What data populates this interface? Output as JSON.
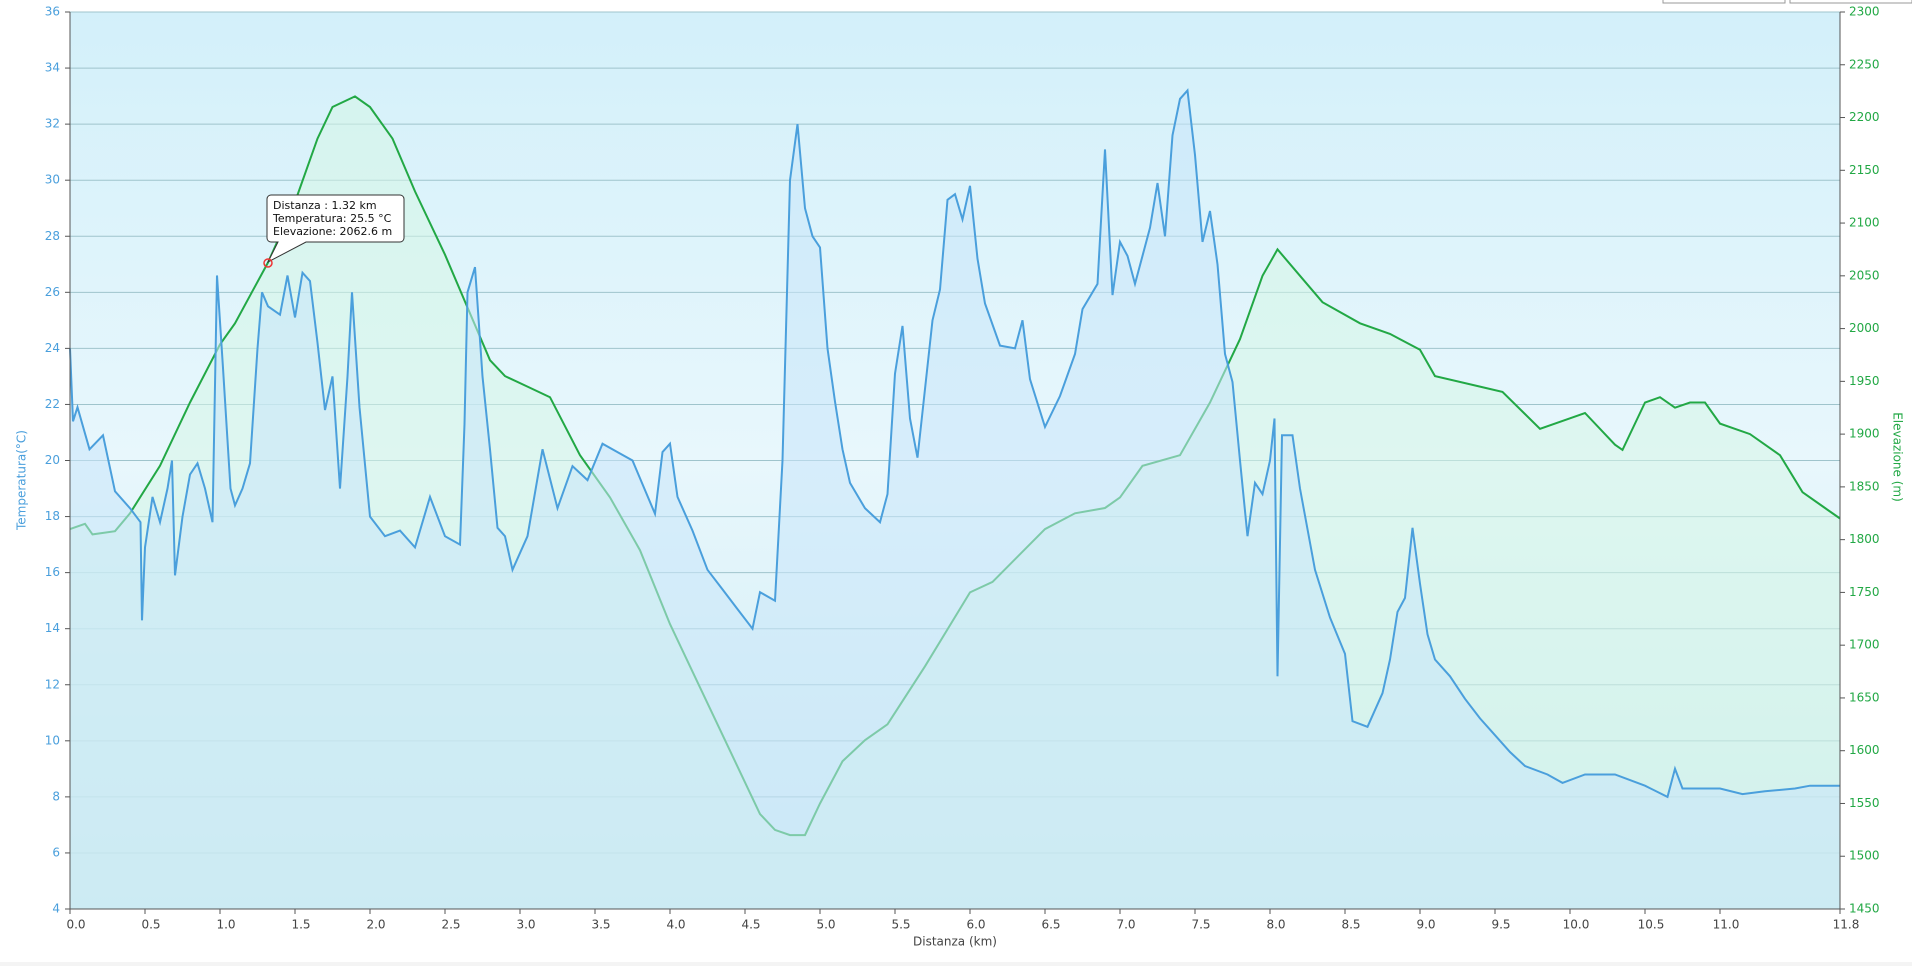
{
  "chart_data": {
    "type": "line",
    "xlabel": "Distanza  (km)",
    "ylabel": "Temperatura(°C)",
    "y2label": "Elevazione (m)",
    "xlim": [
      0,
      11.8
    ],
    "xticks": [
      {
        "value": 0,
        "label": "0.0"
      },
      0.5,
      {
        "value": 1,
        "label": "1.0"
      },
      1.5,
      {
        "value": 2,
        "label": "2.0"
      },
      2.5,
      {
        "value": 3,
        "label": "3.0"
      },
      3.5,
      {
        "value": 4,
        "label": "4.0"
      },
      4.5,
      {
        "value": 5,
        "label": "5.0"
      },
      5.5,
      {
        "value": 6,
        "label": "6.0"
      },
      6.5,
      {
        "value": 7,
        "label": "7.0"
      },
      7.5,
      {
        "value": 8,
        "label": "8.0"
      },
      8.5,
      {
        "value": 9,
        "label": "9.0"
      },
      9.5,
      {
        "value": 10,
        "label": "10.0"
      },
      10.5,
      {
        "value": 11,
        "label": "11.0"
      },
      11.8
    ],
    "ylim": [
      4,
      36
    ],
    "yticks": [
      4,
      6,
      8,
      10,
      12,
      14,
      16,
      18,
      20,
      22,
      24,
      26,
      28,
      30,
      32,
      34,
      36
    ],
    "y2lim": [
      1450,
      2300
    ],
    "y2ticks": [
      1450,
      1500,
      1550,
      1600,
      1650,
      1700,
      1750,
      1800,
      1850,
      1900,
      1950,
      2000,
      2050,
      2100,
      2150,
      2200,
      2250,
      2300
    ],
    "grid": true,
    "tooltip": [
      "Distanza : 1.32 km",
      "Temperatura: 25.5 °C",
      "Elevazione: 2062.6 m"
    ],
    "series": [
      {
        "name": "Temperatura",
        "color": "#4a9fdc",
        "fill": "#c8e6fa",
        "axis": "y",
        "x": [
          0,
          0.02,
          0.05,
          0.13,
          0.22,
          0.3,
          0.4,
          0.47,
          0.48,
          0.5,
          0.55,
          0.6,
          0.65,
          0.68,
          0.7,
          0.75,
          0.8,
          0.85,
          0.9,
          0.95,
          0.98,
          1.02,
          1.07,
          1.1,
          1.15,
          1.2,
          1.25,
          1.28,
          1.32,
          1.4,
          1.45,
          1.5,
          1.55,
          1.6,
          1.65,
          1.7,
          1.75,
          1.8,
          1.85,
          1.88,
          1.93,
          2.0,
          2.1,
          2.2,
          2.3,
          2.4,
          2.5,
          2.6,
          2.63,
          2.65,
          2.7,
          2.75,
          2.8,
          2.85,
          2.9,
          2.95,
          3.05,
          3.15,
          3.25,
          3.35,
          3.45,
          3.55,
          3.65,
          3.75,
          3.9,
          3.95,
          4.0,
          4.05,
          4.15,
          4.25,
          4.35,
          4.45,
          4.55,
          4.6,
          4.7,
          4.75,
          4.8,
          4.85,
          4.9,
          4.95,
          5.0,
          5.05,
          5.1,
          5.15,
          5.2,
          5.3,
          5.4,
          5.45,
          5.5,
          5.55,
          5.6,
          5.65,
          5.75,
          5.8,
          5.85,
          5.9,
          5.95,
          6.0,
          6.05,
          6.1,
          6.2,
          6.3,
          6.35,
          6.4,
          6.5,
          6.6,
          6.7,
          6.75,
          6.85,
          6.9,
          6.95,
          7.0,
          7.05,
          7.1,
          7.2,
          7.25,
          7.3,
          7.35,
          7.4,
          7.45,
          7.5,
          7.55,
          7.6,
          7.65,
          7.7,
          7.75,
          7.8,
          7.85,
          7.9,
          7.95,
          8.0,
          8.03,
          8.05,
          8.08,
          8.15,
          8.2,
          8.3,
          8.4,
          8.5,
          8.55,
          8.65,
          8.75,
          8.8,
          8.85,
          8.9,
          8.95,
          9.0,
          9.05,
          9.1,
          9.2,
          9.3,
          9.4,
          9.5,
          9.6,
          9.7,
          9.85,
          9.95,
          10.1,
          10.3,
          10.5,
          10.65,
          10.7,
          10.75,
          11.0,
          11.15,
          11.3,
          11.5,
          11.6,
          11.8
        ],
        "values": [
          24,
          21.4,
          21.9,
          20.4,
          20.9,
          18.9,
          18.3,
          17.8,
          14.3,
          16.9,
          18.7,
          17.8,
          19,
          20,
          15.9,
          18,
          19.5,
          19.9,
          19,
          17.8,
          26.6,
          23.3,
          19,
          18.4,
          19,
          19.9,
          24,
          26,
          25.5,
          25.2,
          26.6,
          25.1,
          26.7,
          26.4,
          24.2,
          21.8,
          23,
          19,
          23,
          26,
          21.9,
          18,
          17.3,
          17.5,
          16.9,
          18.7,
          17.3,
          17,
          21.3,
          26,
          26.9,
          23,
          20.4,
          17.6,
          17.3,
          16.1,
          17.3,
          20.4,
          18.3,
          19.8,
          19.3,
          20.6,
          20.3,
          20,
          18.1,
          20.3,
          20.6,
          18.7,
          17.5,
          16.1,
          15.4,
          14.7,
          14,
          15.3,
          15,
          20,
          30,
          32,
          29,
          28,
          27.6,
          24,
          22.1,
          20.4,
          19.2,
          18.3,
          17.8,
          18.8,
          23.1,
          24.8,
          21.5,
          20.1,
          25,
          26.1,
          29.3,
          29.5,
          28.6,
          29.8,
          27.2,
          25.6,
          24.1,
          24,
          25,
          22.9,
          21.2,
          22.3,
          23.8,
          25.4,
          26.3,
          31.1,
          25.9,
          27.8,
          27.3,
          26.3,
          28.3,
          29.9,
          28,
          31.6,
          32.9,
          33.2,
          30.9,
          27.8,
          28.9,
          27,
          23.8,
          22.8,
          20,
          17.3,
          19.2,
          18.8,
          20,
          21.5,
          12.3,
          20.9,
          20.9,
          19,
          16.1,
          14.4,
          13.1,
          10.7,
          10.5,
          11.7,
          12.9,
          14.6,
          15.1,
          17.6,
          15.6,
          13.8,
          12.9,
          12.3,
          11.5,
          10.8,
          10.2,
          9.6,
          9.1,
          8.8,
          8.5,
          8.8,
          8.8,
          8.4,
          8,
          9,
          8.3,
          8.3,
          8.1,
          8.2,
          8.3,
          8.4,
          8.4
        ]
      },
      {
        "name": "Elevazione",
        "color": "#22a845",
        "fill": "#d6f5e6",
        "axis": "y2",
        "x": [
          0,
          0.1,
          0.15,
          0.3,
          0.4,
          0.6,
          0.8,
          1.0,
          1.1,
          1.32,
          1.5,
          1.65,
          1.75,
          1.9,
          2.0,
          2.15,
          2.3,
          2.5,
          2.65,
          2.8,
          2.9,
          3.05,
          3.2,
          3.4,
          3.6,
          3.8,
          4.0,
          4.2,
          4.4,
          4.6,
          4.7,
          4.8,
          4.9,
          5.0,
          5.15,
          5.3,
          5.45,
          5.7,
          6.0,
          6.15,
          6.5,
          6.7,
          6.9,
          7.0,
          7.15,
          7.4,
          7.6,
          7.8,
          7.95,
          8.05,
          8.2,
          8.35,
          8.6,
          8.8,
          9.0,
          9.1,
          9.4,
          9.55,
          9.8,
          10.0,
          10.1,
          10.3,
          10.35,
          10.5,
          10.6,
          10.7,
          10.8,
          10.9,
          11.0,
          11.2,
          11.4,
          11.55,
          11.7,
          11.8
        ],
        "values": [
          1810,
          1815,
          1805,
          1808,
          1825,
          1870,
          1930,
          1985,
          2005,
          2062.6,
          2120,
          2180,
          2210,
          2220,
          2210,
          2180,
          2130,
          2070,
          2020,
          1970,
          1955,
          1945,
          1935,
          1880,
          1840,
          1790,
          1720,
          1660,
          1600,
          1540,
          1525,
          1520,
          1520,
          1550,
          1590,
          1610,
          1625,
          1680,
          1750,
          1760,
          1810,
          1825,
          1830,
          1840,
          1870,
          1880,
          1930,
          1990,
          2050,
          2075,
          2050,
          2025,
          2005,
          1995,
          1980,
          1955,
          1945,
          1940,
          1905,
          1915,
          1920,
          1890,
          1885,
          1930,
          1935,
          1925,
          1930,
          1930,
          1910,
          1900,
          1880,
          1845,
          1830,
          1820
        ]
      }
    ]
  }
}
